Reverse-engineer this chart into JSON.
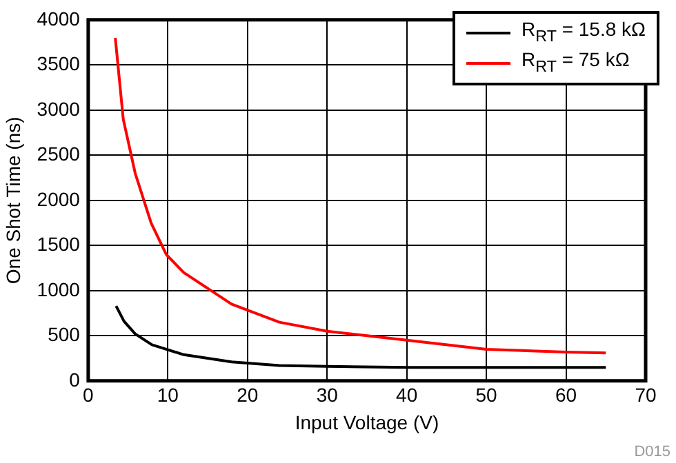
{
  "chart_data": {
    "type": "line",
    "xlabel": "Input Voltage (V)",
    "ylabel": "One Shot Time (ns)",
    "xlim": [
      0,
      70
    ],
    "xticks": [
      0,
      10,
      20,
      30,
      40,
      50,
      60,
      70
    ],
    "ylim": [
      0,
      4000
    ],
    "yticks": [
      0,
      500,
      1000,
      1500,
      2000,
      2500,
      3000,
      3500,
      4000
    ],
    "grid": true,
    "legend": "top right",
    "marker": "none",
    "annotations": [
      "D015"
    ],
    "series": [
      {
        "name": "R$_{RT}$ = 15.8 kΩ",
        "color": "#000000",
        "x": [
          3.5,
          4.5,
          5.9,
          8,
          12,
          18,
          24,
          30,
          40,
          50,
          60,
          65
        ],
        "values": [
          830,
          660,
          520,
          400,
          290,
          210,
          170,
          160,
          150,
          150,
          150,
          150
        ]
      },
      {
        "name": "R$_{RT}$ = 75 kΩ",
        "color": "#ff0000",
        "x": [
          3.4,
          4.4,
          5.9,
          7.9,
          9.8,
          12,
          18,
          24,
          30,
          40,
          50,
          60,
          65
        ],
        "values": [
          3800,
          2900,
          2300,
          1750,
          1400,
          1200,
          850,
          650,
          550,
          450,
          350,
          320,
          310
        ]
      }
    ]
  }
}
